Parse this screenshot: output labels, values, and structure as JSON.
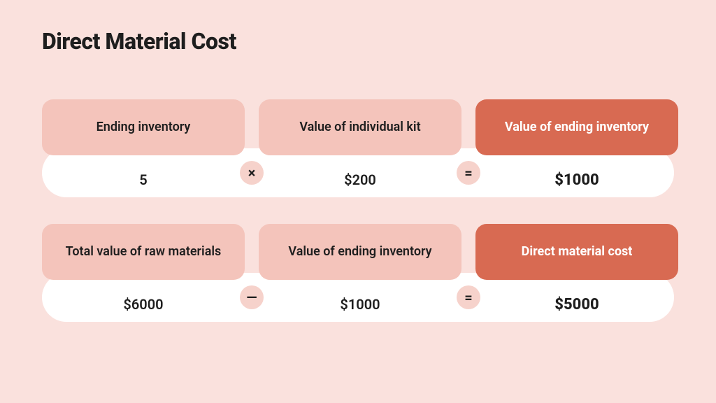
{
  "title": "Direct Material Cost",
  "colors": {
    "page_bg": "#fae1dd",
    "pink_box": "#f4c4bb",
    "red_box": "#d86a52",
    "op_bg": "#f6d2cb",
    "text_dark": "#1e1e1e",
    "white_text": "#ffffff"
  },
  "rows": [
    {
      "c1": {
        "label": "Ending inventory",
        "value": "5",
        "style": "pink"
      },
      "op1": "×",
      "c2": {
        "label": "Value of individual kit",
        "value": "$200",
        "style": "pink"
      },
      "op2": "=",
      "c3": {
        "label": "Value of ending inventory",
        "value": "$1000",
        "style": "red"
      }
    },
    {
      "c1": {
        "label": "Total value of raw materials",
        "value": "$6000",
        "style": "pink"
      },
      "op1": "—",
      "c2": {
        "label": "Value of ending inventory",
        "value": "$1000",
        "style": "pink"
      },
      "op2": "=",
      "c3": {
        "label": "Direct material cost",
        "value": "$5000",
        "style": "red"
      }
    }
  ]
}
